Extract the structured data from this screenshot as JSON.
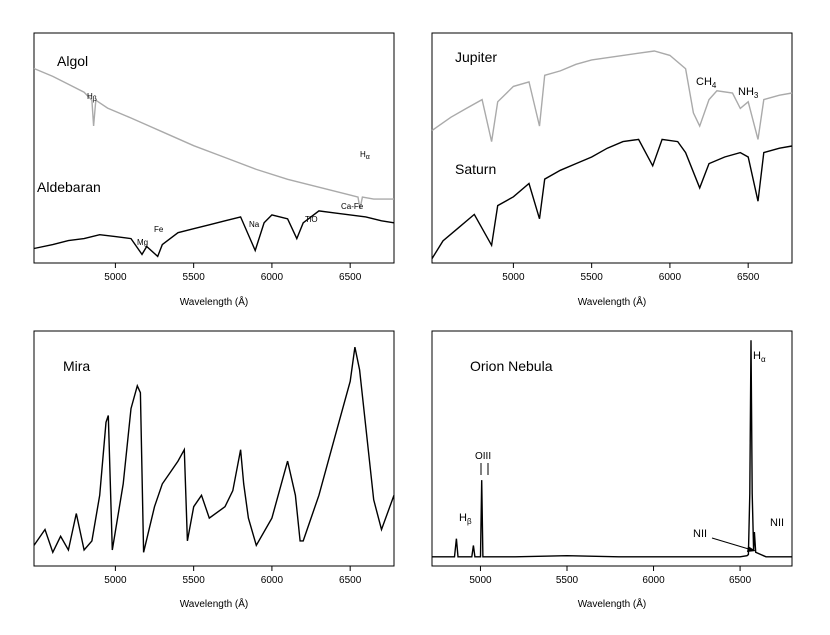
{
  "figure": {
    "panels": [
      "Algol / Aldebaran",
      "Jupiter / Saturn",
      "Mira",
      "Orion Nebula"
    ]
  },
  "chart_data": [
    {
      "type": "line",
      "panel": "top-left",
      "xlabel": "Wavelength (Å)",
      "xlim": [
        4480,
        6780
      ],
      "xticks": [
        5000,
        5500,
        6000,
        6500
      ],
      "series": [
        {
          "name": "Algol",
          "color": "#aaaaaa",
          "x": [
            4480,
            4600,
            4700,
            4800,
            4850,
            4861,
            4875,
            4950,
            5100,
            5300,
            5500,
            5700,
            5900,
            6100,
            6300,
            6500,
            6550,
            6563,
            6578,
            6650,
            6780
          ],
          "y": [
            0.96,
            0.92,
            0.88,
            0.84,
            0.8,
            0.67,
            0.8,
            0.76,
            0.71,
            0.64,
            0.57,
            0.51,
            0.45,
            0.4,
            0.36,
            0.32,
            0.31,
            0.25,
            0.31,
            0.3,
            0.3
          ]
        },
        {
          "name": "Aldebaran",
          "color": "#000000",
          "x": [
            4480,
            4600,
            4700,
            4800,
            4900,
            5000,
            5100,
            5170,
            5200,
            5270,
            5300,
            5400,
            5500,
            5600,
            5700,
            5800,
            5893,
            5950,
            6000,
            6100,
            6159,
            6200,
            6300,
            6400,
            6500,
            6600,
            6700,
            6780
          ],
          "y": [
            0.05,
            0.07,
            0.09,
            0.1,
            0.12,
            0.11,
            0.1,
            0.02,
            0.06,
            0.01,
            0.07,
            0.13,
            0.15,
            0.17,
            0.19,
            0.21,
            0.04,
            0.18,
            0.22,
            0.2,
            0.1,
            0.18,
            0.24,
            0.23,
            0.22,
            0.21,
            0.19,
            0.18
          ]
        }
      ],
      "annotations": [
        {
          "name": "Algol",
          "text": "Algol"
        },
        {
          "name": "Aldebaran",
          "text": "Aldebaran"
        },
        {
          "text": "H",
          "sub": "β",
          "x": 4861
        },
        {
          "text": "H",
          "sub": "α",
          "x": 6563
        },
        {
          "text": "Mg",
          "x": 5170
        },
        {
          "text": "Fe",
          "x": 5270
        },
        {
          "text": "Na",
          "x": 5893
        },
        {
          "text": "TiO",
          "x": 6159
        },
        {
          "text": "Ca-Fe",
          "x": 6440
        }
      ]
    },
    {
      "type": "line",
      "panel": "top-right",
      "xlabel": "Wavelength (Å)",
      "xlim": [
        4480,
        6780
      ],
      "xticks": [
        5000,
        5500,
        6000,
        6500
      ],
      "series": [
        {
          "name": "Jupiter",
          "color": "#aaaaaa",
          "x": [
            4480,
            4600,
            4700,
            4800,
            4861,
            4900,
            5000,
            5100,
            5167,
            5200,
            5300,
            5400,
            5500,
            5600,
            5700,
            5800,
            5900,
            6000,
            6100,
            6150,
            6190,
            6250,
            6300,
            6400,
            6450,
            6500,
            6563,
            6600,
            6700,
            6780
          ],
          "y": [
            0.6,
            0.66,
            0.7,
            0.74,
            0.55,
            0.73,
            0.8,
            0.82,
            0.62,
            0.85,
            0.87,
            0.9,
            0.92,
            0.93,
            0.94,
            0.95,
            0.96,
            0.94,
            0.88,
            0.68,
            0.62,
            0.74,
            0.78,
            0.77,
            0.7,
            0.73,
            0.56,
            0.74,
            0.76,
            0.77
          ]
        },
        {
          "name": "Saturn",
          "color": "#000000",
          "x": [
            4480,
            4550,
            4650,
            4750,
            4861,
            4900,
            5000,
            5100,
            5167,
            5200,
            5300,
            5400,
            5500,
            5600,
            5700,
            5800,
            5890,
            5950,
            6050,
            6100,
            6190,
            6250,
            6350,
            6450,
            6500,
            6563,
            6600,
            6700,
            6780
          ],
          "y": [
            0.02,
            0.1,
            0.16,
            0.22,
            0.08,
            0.26,
            0.3,
            0.36,
            0.2,
            0.38,
            0.42,
            0.45,
            0.48,
            0.52,
            0.55,
            0.56,
            0.44,
            0.56,
            0.55,
            0.5,
            0.34,
            0.45,
            0.48,
            0.5,
            0.48,
            0.28,
            0.5,
            0.52,
            0.53
          ]
        }
      ],
      "annotations": [
        {
          "name": "Jupiter",
          "text": "Jupiter"
        },
        {
          "name": "Saturn",
          "text": "Saturn"
        },
        {
          "text": "CH",
          "sub": "4",
          "x": 6150
        },
        {
          "text": "NH",
          "sub": "3",
          "x": 6450
        }
      ]
    },
    {
      "type": "line",
      "panel": "bottom-left",
      "xlabel": "Wavelength (Å)",
      "xlim": [
        4480,
        6780
      ],
      "xticks": [
        5000,
        5500,
        6000,
        6500
      ],
      "series": [
        {
          "name": "Mira",
          "color": "#000000",
          "x": [
            4480,
            4550,
            4600,
            4650,
            4700,
            4750,
            4800,
            4850,
            4900,
            4940,
            4955,
            4980,
            5050,
            5100,
            5140,
            5160,
            5180,
            5250,
            5300,
            5350,
            5400,
            5440,
            5460,
            5500,
            5550,
            5600,
            5700,
            5750,
            5800,
            5820,
            5850,
            5900,
            6000,
            6100,
            6150,
            6180,
            6200,
            6300,
            6400,
            6500,
            6530,
            6560,
            6600,
            6650,
            6700,
            6780
          ],
          "y": [
            0.08,
            0.15,
            0.05,
            0.12,
            0.06,
            0.22,
            0.06,
            0.1,
            0.3,
            0.62,
            0.65,
            0.06,
            0.35,
            0.68,
            0.78,
            0.75,
            0.05,
            0.25,
            0.35,
            0.4,
            0.45,
            0.5,
            0.1,
            0.25,
            0.3,
            0.2,
            0.25,
            0.32,
            0.5,
            0.35,
            0.2,
            0.08,
            0.2,
            0.45,
            0.3,
            0.1,
            0.1,
            0.3,
            0.55,
            0.8,
            0.95,
            0.85,
            0.6,
            0.28,
            0.15,
            0.3
          ]
        }
      ],
      "annotations": [
        {
          "name": "Mira",
          "text": "Mira"
        }
      ]
    },
    {
      "type": "line",
      "panel": "bottom-right",
      "xlabel": "Wavelength (Å)",
      "xlim": [
        4720,
        6800
      ],
      "xticks": [
        5000,
        5500,
        6000,
        6500
      ],
      "series": [
        {
          "name": "Orion Nebula",
          "color": "#000000",
          "x": [
            4720,
            4800,
            4850,
            4861,
            4870,
            4900,
            4950,
            4959,
            4968,
            4990,
            5000,
            5007,
            5014,
            5030,
            5200,
            5500,
            5800,
            6100,
            6400,
            6500,
            6540,
            6548,
            6556,
            6560,
            6563,
            6566,
            6570,
            6578,
            6583,
            6590,
            6650,
            6800
          ],
          "y": [
            0.02,
            0.02,
            0.02,
            0.1,
            0.02,
            0.02,
            0.02,
            0.07,
            0.02,
            0.02,
            0.02,
            0.36,
            0.02,
            0.02,
            0.02,
            0.025,
            0.02,
            0.02,
            0.02,
            0.02,
            0.025,
            0.03,
            0.3,
            0.7,
            0.98,
            0.7,
            0.3,
            0.05,
            0.13,
            0.04,
            0.02,
            0.02
          ]
        }
      ],
      "annotations": [
        {
          "name": "Orion Nebula",
          "text": "Orion Nebula"
        },
        {
          "text": "H",
          "sub": "β",
          "x": 4861
        },
        {
          "text": "OIII",
          "x": 4984
        },
        {
          "text": "H",
          "sub": "α",
          "x": 6563
        },
        {
          "text": "NII",
          "x": 6548
        },
        {
          "text": "NII",
          "x": 6583
        }
      ]
    }
  ],
  "text": {
    "xlabel": "Wavelength (Å)",
    "algol": "Algol",
    "aldebaran": "Aldebaran",
    "jupiter": "Jupiter",
    "saturn": "Saturn",
    "mira": "Mira",
    "orion": "Orion Nebula",
    "h": "H",
    "beta": "β",
    "alpha": "α",
    "mg": "Mg",
    "fe": "Fe",
    "na": "Na",
    "tio": "TiO",
    "cafe": "Ca-Fe",
    "ch": "CH",
    "four": "4",
    "nh": "NH",
    "three": "3",
    "oiii": "OIII",
    "nii": "NII",
    "t5000": "5000",
    "t5500": "5500",
    "t6000": "6000",
    "t6500": "6500"
  }
}
